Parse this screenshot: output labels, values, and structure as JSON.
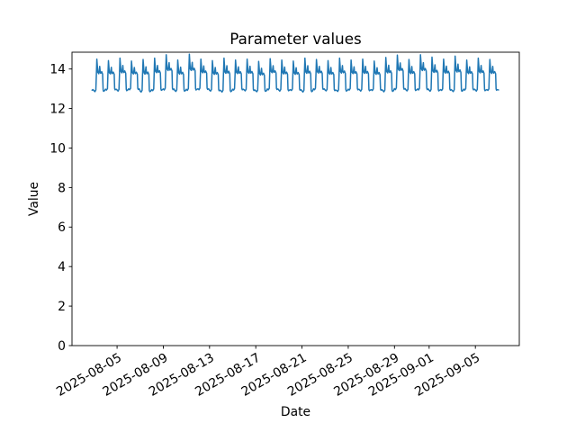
{
  "figure": {
    "background": "#ffffff"
  },
  "chart_data": {
    "type": "line",
    "title": "Parameter values",
    "xlabel": "Date",
    "ylabel": "Value",
    "line_color": "#1f77b4",
    "axis_color": "#000000",
    "grid": false,
    "legend": false,
    "ylim": [
      0,
      14.85
    ],
    "yticks": [
      0,
      2,
      4,
      6,
      8,
      10,
      12,
      14
    ],
    "x_epoch_date": "2025-08-01",
    "xlim_days": [
      0.1,
      38.8
    ],
    "xticks": [
      {
        "label": "2025-08-05",
        "day": 4
      },
      {
        "label": "2025-08-09",
        "day": 8
      },
      {
        "label": "2025-08-13",
        "day": 12
      },
      {
        "label": "2025-08-17",
        "day": 16
      },
      {
        "label": "2025-08-21",
        "day": 20
      },
      {
        "label": "2025-08-25",
        "day": 24
      },
      {
        "label": "2025-08-29",
        "day": 28
      },
      {
        "label": "2025-09-01",
        "day": 31
      },
      {
        "label": "2025-09-05",
        "day": 35
      }
    ],
    "series": {
      "name": "parameter-values",
      "first_date": "2025-08-02",
      "last_date": "2025-09-07",
      "first_day_offset": 1,
      "start_t": 1.82,
      "end_t": 37.02,
      "sample_hours": [
        0,
        2,
        4,
        5,
        6,
        8,
        10,
        12,
        13,
        14,
        16,
        18,
        19,
        20,
        22
      ],
      "daily_pattern": [
        0.05,
        0.02,
        0.07,
        0.55,
        1.0,
        0.6,
        0.56,
        0.78,
        0.6,
        0.57,
        0.62,
        0.55,
        0.07,
        0.03,
        0.05
      ],
      "daily_peaks": [
        14.45,
        14.5,
        14.42,
        14.55,
        14.4,
        14.48,
        14.55,
        14.72,
        14.45,
        14.75,
        14.5,
        14.42,
        14.55,
        14.45,
        14.5,
        14.38,
        14.52,
        14.45,
        14.4,
        14.55,
        14.48,
        14.42,
        14.55,
        14.45,
        14.5,
        14.4,
        14.58,
        14.7,
        14.48,
        14.72,
        14.6,
        14.5,
        14.65,
        14.45,
        14.55,
        14.48,
        14.42
      ],
      "daily_lows": [
        12.88,
        12.82,
        12.9,
        12.85,
        12.92,
        12.8,
        12.87,
        12.9,
        12.83,
        12.88,
        12.92,
        12.85,
        12.8,
        12.9,
        12.86,
        12.82,
        12.91,
        12.85,
        12.88,
        12.8,
        12.92,
        12.86,
        12.83,
        12.9,
        12.85,
        12.88,
        12.81,
        12.92,
        12.86,
        12.9,
        12.84,
        12.88,
        12.82,
        12.9,
        12.85,
        12.88,
        12.86
      ]
    }
  }
}
